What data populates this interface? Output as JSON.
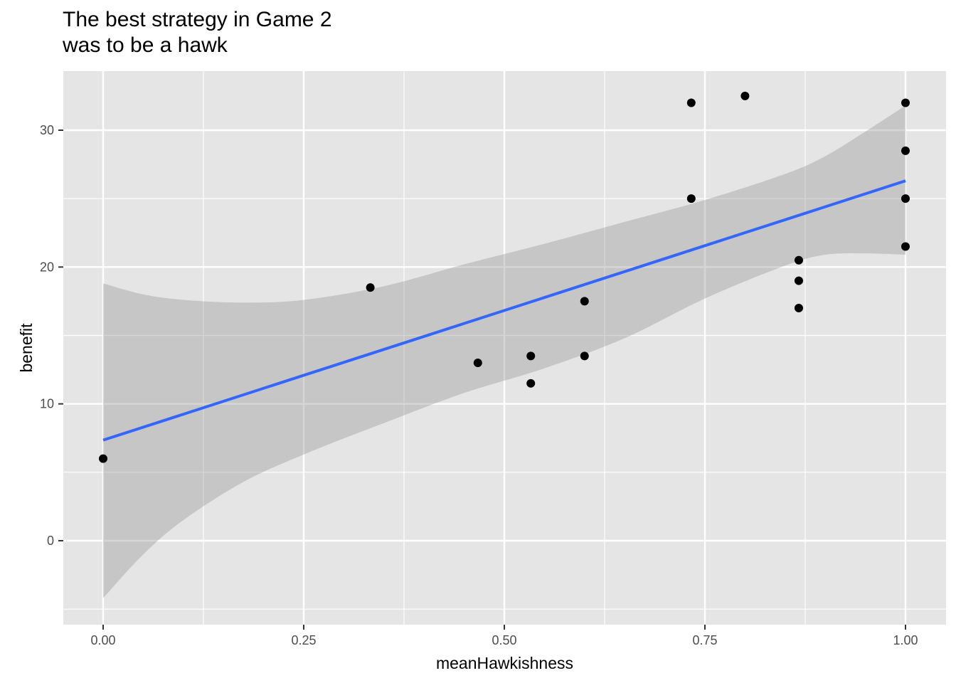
{
  "chart_data": {
    "type": "scatter",
    "title": "The best strategy in Game 2\nwas to be a hawk",
    "xlabel": "meanHawkishness",
    "ylabel": "benefit",
    "xlim": [
      -0.1,
      1.05
    ],
    "ylim": [
      -6,
      34.3
    ],
    "xticks": [
      {
        "value": 0,
        "label": "0.00"
      },
      {
        "value": 0.25,
        "label": "0.25"
      },
      {
        "value": 0.5,
        "label": "0.50"
      },
      {
        "value": 0.75,
        "label": "0.75"
      },
      {
        "value": 1,
        "label": "1.00"
      }
    ],
    "yticks": [
      {
        "value": 0,
        "label": "0"
      },
      {
        "value": 10,
        "label": "10"
      },
      {
        "value": 20,
        "label": "20"
      },
      {
        "value": 30,
        "label": "30"
      }
    ],
    "grid": true,
    "panel_background": "#e5e5e5",
    "point_color": "#000000",
    "fit_color": "#3366ff",
    "ribbon_color": "#bebebe",
    "points": [
      {
        "x": 0.0,
        "y": 6.0
      },
      {
        "x": 0.333,
        "y": 18.5
      },
      {
        "x": 0.467,
        "y": 13.0
      },
      {
        "x": 0.533,
        "y": 13.5
      },
      {
        "x": 0.533,
        "y": 11.5
      },
      {
        "x": 0.6,
        "y": 17.5
      },
      {
        "x": 0.6,
        "y": 13.5
      },
      {
        "x": 0.733,
        "y": 32.0
      },
      {
        "x": 0.733,
        "y": 25.0
      },
      {
        "x": 0.8,
        "y": 32.5
      },
      {
        "x": 0.867,
        "y": 20.5
      },
      {
        "x": 0.867,
        "y": 19.0
      },
      {
        "x": 0.867,
        "y": 17.0
      },
      {
        "x": 1.0,
        "y": 32.0
      },
      {
        "x": 1.0,
        "y": 28.5
      },
      {
        "x": 1.0,
        "y": 25.0
      },
      {
        "x": 1.0,
        "y": 21.5
      }
    ],
    "fit_line": {
      "x": [
        0,
        1
      ],
      "y": [
        7.35,
        26.3
      ]
    },
    "confidence_band": {
      "x": [
        0.0,
        0.05,
        0.1,
        0.175,
        0.25,
        0.35,
        0.45,
        0.55,
        0.65,
        0.75,
        0.85,
        0.9,
        0.95,
        1.0
      ],
      "upper": [
        18.8,
        18.0,
        17.6,
        17.4,
        17.6,
        18.6,
        20.2,
        21.7,
        23.3,
        24.9,
        26.8,
        28.1,
        29.9,
        31.8
      ],
      "lower": [
        -4.2,
        -1.0,
        1.5,
        4.3,
        6.3,
        8.6,
        10.8,
        12.6,
        14.8,
        17.7,
        20.1,
        20.9,
        21.0,
        20.9
      ]
    }
  }
}
